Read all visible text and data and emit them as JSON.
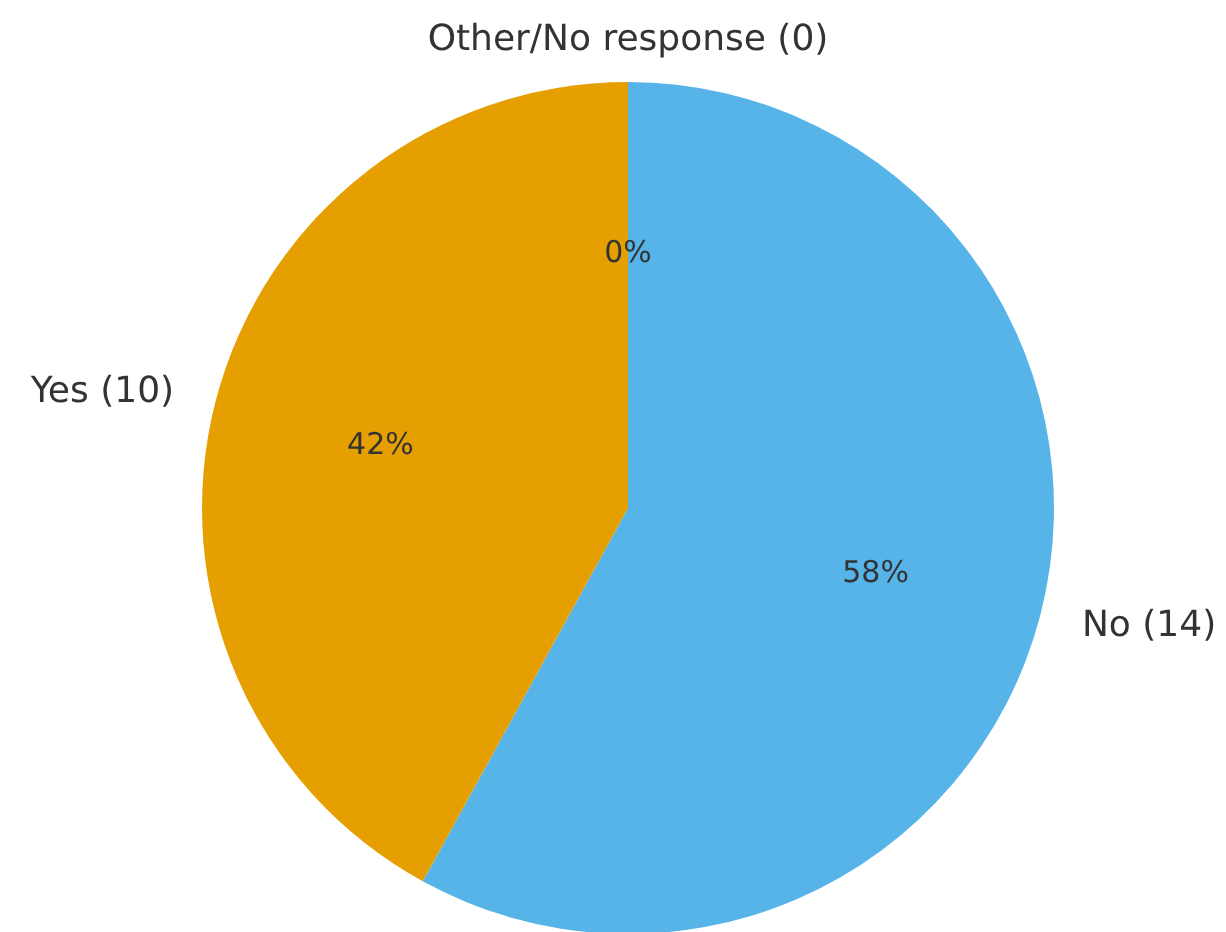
{
  "chart_data": {
    "type": "pie",
    "categories": [
      "No (14)",
      "Yes (10)",
      "Other/No response (0)"
    ],
    "values": [
      58,
      42,
      0
    ],
    "colors": [
      "#56b4e9",
      "#e69f00",
      "#009e73"
    ],
    "value_labels": [
      "58%",
      "42%",
      "0%"
    ]
  }
}
